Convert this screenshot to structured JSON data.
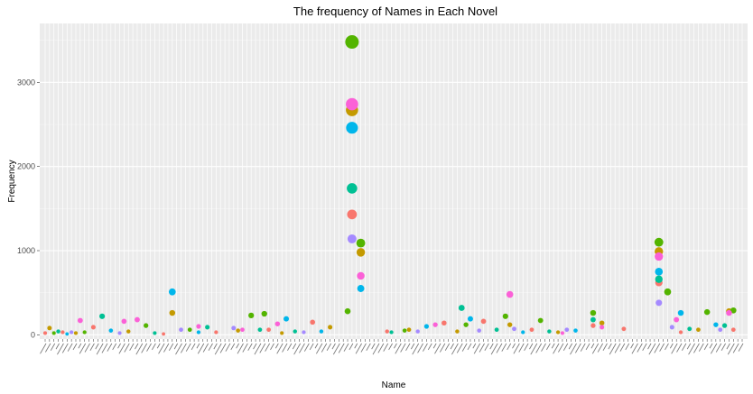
{
  "chart_data": {
    "type": "scatter",
    "title": "The frequency of Names in Each Novel",
    "xlabel": "Name",
    "ylabel": "Frequency",
    "ylim": [
      -50,
      3700
    ],
    "y_ticks": [
      0,
      1000,
      2000,
      3000
    ],
    "grid": true,
    "legend": "none",
    "n_categories": 160,
    "x_tick_labels_note": "160 rotated category names too small to read",
    "series": [
      {
        "color": "#F8766D",
        "points": [
          [
            1,
            20
          ],
          [
            5,
            30
          ],
          [
            12,
            90
          ],
          [
            28,
            10
          ],
          [
            40,
            30
          ],
          [
            52,
            60
          ],
          [
            62,
            150
          ],
          [
            71,
            1430
          ],
          [
            79,
            40
          ],
          [
            92,
            140
          ],
          [
            101,
            160
          ],
          [
            112,
            60
          ],
          [
            126,
            110
          ],
          [
            133,
            70
          ],
          [
            141,
            620
          ],
          [
            146,
            30
          ],
          [
            158,
            60
          ]
        ]
      },
      {
        "color": "#C49A00",
        "points": [
          [
            2,
            80
          ],
          [
            8,
            20
          ],
          [
            20,
            40
          ],
          [
            30,
            260
          ],
          [
            45,
            50
          ],
          [
            55,
            20
          ],
          [
            66,
            90
          ],
          [
            71,
            2670
          ],
          [
            73,
            980
          ],
          [
            84,
            60
          ],
          [
            95,
            40
          ],
          [
            107,
            120
          ],
          [
            118,
            30
          ],
          [
            128,
            140
          ],
          [
            141,
            990
          ],
          [
            150,
            60
          ],
          [
            157,
            280
          ]
        ]
      },
      {
        "color": "#53B400",
        "points": [
          [
            3,
            20
          ],
          [
            10,
            30
          ],
          [
            24,
            110
          ],
          [
            34,
            60
          ],
          [
            48,
            230
          ],
          [
            51,
            250
          ],
          [
            70,
            280
          ],
          [
            71,
            3480
          ],
          [
            73,
            1090
          ],
          [
            83,
            50
          ],
          [
            97,
            120
          ],
          [
            106,
            220
          ],
          [
            114,
            170
          ],
          [
            126,
            260
          ],
          [
            141,
            1100
          ],
          [
            143,
            510
          ],
          [
            152,
            270
          ],
          [
            158,
            290
          ]
        ]
      },
      {
        "color": "#00C094",
        "points": [
          [
            4,
            40
          ],
          [
            14,
            220
          ],
          [
            26,
            20
          ],
          [
            38,
            90
          ],
          [
            50,
            60
          ],
          [
            58,
            40
          ],
          [
            71,
            1740
          ],
          [
            80,
            30
          ],
          [
            96,
            320
          ],
          [
            104,
            60
          ],
          [
            116,
            40
          ],
          [
            126,
            180
          ],
          [
            141,
            660
          ],
          [
            148,
            70
          ],
          [
            156,
            110
          ]
        ]
      },
      {
        "color": "#00B6EB",
        "points": [
          [
            6,
            10
          ],
          [
            16,
            50
          ],
          [
            30,
            510
          ],
          [
            36,
            30
          ],
          [
            56,
            190
          ],
          [
            64,
            40
          ],
          [
            71,
            2460
          ],
          [
            73,
            550
          ],
          [
            88,
            100
          ],
          [
            98,
            190
          ],
          [
            110,
            30
          ],
          [
            122,
            50
          ],
          [
            141,
            750
          ],
          [
            146,
            260
          ],
          [
            154,
            120
          ]
        ]
      },
      {
        "color": "#A58AFF",
        "points": [
          [
            7,
            30
          ],
          [
            18,
            20
          ],
          [
            32,
            60
          ],
          [
            44,
            80
          ],
          [
            60,
            30
          ],
          [
            71,
            1140
          ],
          [
            86,
            40
          ],
          [
            100,
            50
          ],
          [
            108,
            70
          ],
          [
            120,
            60
          ],
          [
            141,
            380
          ],
          [
            144,
            90
          ],
          [
            155,
            60
          ]
        ]
      },
      {
        "color": "#FB61D7",
        "points": [
          [
            9,
            170
          ],
          [
            19,
            160
          ],
          [
            22,
            180
          ],
          [
            36,
            100
          ],
          [
            46,
            60
          ],
          [
            54,
            130
          ],
          [
            71,
            2740
          ],
          [
            73,
            700
          ],
          [
            90,
            120
          ],
          [
            107,
            480
          ],
          [
            119,
            20
          ],
          [
            128,
            90
          ],
          [
            141,
            930
          ],
          [
            145,
            180
          ],
          [
            157,
            260
          ]
        ]
      }
    ]
  }
}
